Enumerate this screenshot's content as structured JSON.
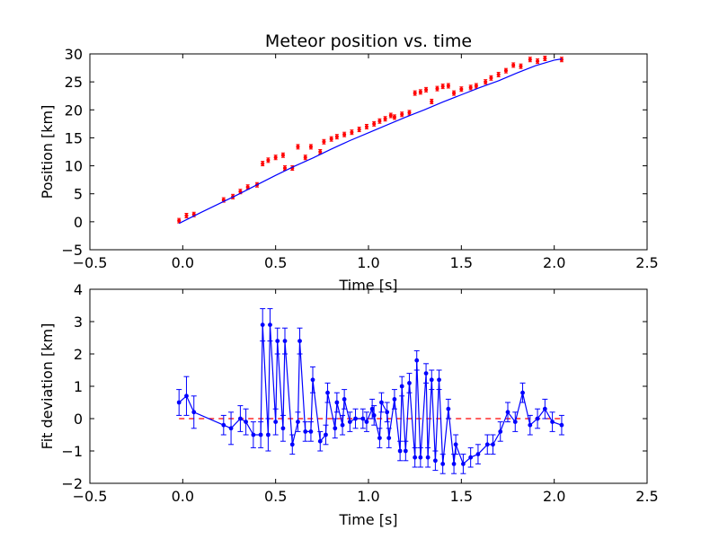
{
  "chart_data": [
    {
      "type": "scatter",
      "title": "Meteor position vs. time",
      "xlabel": "Time [s]",
      "ylabel": "Position [km]",
      "xlim": [
        -0.5,
        2.5
      ],
      "ylim": [
        -5,
        30
      ],
      "xticks": [
        "−0.5",
        "0.0",
        "0.5",
        "1.0",
        "1.5",
        "2.0",
        "2.5"
      ],
      "yticks": [
        "−5",
        "0",
        "5",
        "10",
        "15",
        "20",
        "25",
        "30"
      ],
      "grid": false,
      "colors": {
        "points": "#ff0000",
        "fit": "#0000ff"
      },
      "series": [
        {
          "kind": "errorbar-points",
          "color": "#ff0000",
          "error": 0.4,
          "x": [
            -0.02,
            0.02,
            0.06,
            0.22,
            0.27,
            0.31,
            0.35,
            0.4,
            0.43,
            0.46,
            0.5,
            0.54,
            0.55,
            0.59,
            0.62,
            0.66,
            0.69,
            0.74,
            0.76,
            0.8,
            0.83,
            0.87,
            0.91,
            0.95,
            0.99,
            1.03,
            1.06,
            1.09,
            1.12,
            1.14,
            1.18,
            1.22,
            1.25,
            1.28,
            1.31,
            1.34,
            1.37,
            1.4,
            1.43,
            1.46,
            1.5,
            1.55,
            1.58,
            1.63,
            1.66,
            1.7,
            1.74,
            1.78,
            1.82,
            1.87,
            1.91,
            1.95,
            2.04
          ],
          "y": [
            0.2,
            1.1,
            1.3,
            3.9,
            4.5,
            5.4,
            6.2,
            6.6,
            10.4,
            11.0,
            11.5,
            11.9,
            9.6,
            9.6,
            13.4,
            11.5,
            13.4,
            12.5,
            14.3,
            14.8,
            15.2,
            15.6,
            16.0,
            16.5,
            17.0,
            17.5,
            18.0,
            18.4,
            19.0,
            18.7,
            19.2,
            19.5,
            23.0,
            23.2,
            23.6,
            21.5,
            23.8,
            24.2,
            24.3,
            23.0,
            23.7,
            24.0,
            24.3,
            25.0,
            25.7,
            26.3,
            27.0,
            28.0,
            27.8,
            29.0,
            28.7,
            29.2,
            29.0
          ]
        },
        {
          "kind": "fit-line",
          "color": "#0000ff",
          "x": [
            -0.02,
            0.1,
            0.2,
            0.3,
            0.4,
            0.5,
            0.6,
            0.7,
            0.8,
            0.9,
            1.0,
            1.1,
            1.2,
            1.3,
            1.4,
            1.5,
            1.6,
            1.7,
            1.8,
            1.9,
            2.0,
            2.04
          ],
          "y": [
            -0.3,
            1.7,
            3.3,
            4.9,
            6.6,
            8.3,
            9.9,
            11.4,
            13.0,
            14.5,
            15.9,
            17.3,
            18.7,
            20.0,
            21.4,
            22.7,
            24.0,
            25.2,
            26.6,
            27.9,
            28.9,
            29.1
          ]
        }
      ]
    },
    {
      "type": "line",
      "title": "",
      "xlabel": "Time [s]",
      "ylabel": "Fit deviation [km]",
      "xlim": [
        -0.5,
        2.5
      ],
      "ylim": [
        -2,
        4
      ],
      "xticks": [
        "−0.5",
        "0.0",
        "0.5",
        "1.0",
        "1.5",
        "2.0",
        "2.5"
      ],
      "yticks": [
        "−2",
        "−1",
        "0",
        "1",
        "2",
        "3",
        "4"
      ],
      "grid": false,
      "colors": {
        "line": "#0000ff",
        "reference": "#ff0000"
      },
      "reference_line": {
        "y": 0,
        "x": [
          -0.02,
          2.04
        ],
        "style": "dashed",
        "color": "#ff0000"
      },
      "series": [
        {
          "kind": "errorbar-line",
          "color": "#0000ff",
          "x": [
            -0.02,
            0.02,
            0.06,
            0.22,
            0.26,
            0.31,
            0.34,
            0.38,
            0.42,
            0.43,
            0.46,
            0.47,
            0.5,
            0.51,
            0.54,
            0.55,
            0.59,
            0.62,
            0.63,
            0.66,
            0.69,
            0.7,
            0.74,
            0.77,
            0.78,
            0.82,
            0.83,
            0.86,
            0.87,
            0.9,
            0.93,
            0.97,
            0.99,
            1.02,
            1.03,
            1.06,
            1.07,
            1.1,
            1.11,
            1.14,
            1.17,
            1.18,
            1.2,
            1.22,
            1.25,
            1.26,
            1.28,
            1.31,
            1.32,
            1.34,
            1.36,
            1.38,
            1.4,
            1.43,
            1.46,
            1.47,
            1.51,
            1.55,
            1.59,
            1.64,
            1.67,
            1.71,
            1.75,
            1.79,
            1.83,
            1.87,
            1.91,
            1.95,
            1.99,
            2.04
          ],
          "y": [
            0.5,
            0.7,
            0.2,
            -0.2,
            -0.3,
            0.0,
            -0.1,
            -0.5,
            -0.5,
            2.9,
            -0.5,
            2.9,
            -0.1,
            2.4,
            -0.3,
            2.4,
            -0.8,
            -0.1,
            2.4,
            -0.4,
            -0.4,
            1.2,
            -0.7,
            -0.5,
            0.8,
            -0.3,
            0.5,
            -0.2,
            0.6,
            -0.1,
            0.0,
            0.0,
            -0.1,
            0.3,
            0.1,
            -0.6,
            0.5,
            0.2,
            -0.6,
            0.6,
            -1.0,
            1.0,
            -1.0,
            1.1,
            -1.2,
            1.8,
            -1.2,
            1.4,
            -1.2,
            1.2,
            -1.3,
            1.2,
            -1.4,
            0.3,
            -1.4,
            -0.8,
            -1.4,
            -1.2,
            -1.1,
            -0.8,
            -0.8,
            -0.4,
            0.2,
            -0.1,
            0.8,
            -0.2,
            0.0,
            0.3,
            -0.1,
            -0.2
          ],
          "error": [
            0.4,
            0.6,
            0.5,
            0.3,
            0.5,
            0.4,
            0.4,
            0.4,
            0.4,
            0.5,
            0.5,
            0.5,
            0.4,
            0.4,
            0.4,
            0.4,
            0.3,
            0.3,
            0.4,
            0.3,
            0.3,
            0.4,
            0.3,
            0.3,
            0.3,
            0.3,
            0.3,
            0.3,
            0.3,
            0.3,
            0.3,
            0.3,
            0.3,
            0.3,
            0.3,
            0.3,
            0.3,
            0.3,
            0.3,
            0.3,
            0.3,
            0.3,
            0.3,
            0.3,
            0.3,
            0.3,
            0.3,
            0.3,
            0.3,
            0.3,
            0.3,
            0.3,
            0.3,
            0.3,
            0.3,
            0.3,
            0.3,
            0.3,
            0.3,
            0.3,
            0.3,
            0.3,
            0.3,
            0.3,
            0.3,
            0.3,
            0.3,
            0.3,
            0.3,
            0.3
          ]
        }
      ]
    }
  ]
}
